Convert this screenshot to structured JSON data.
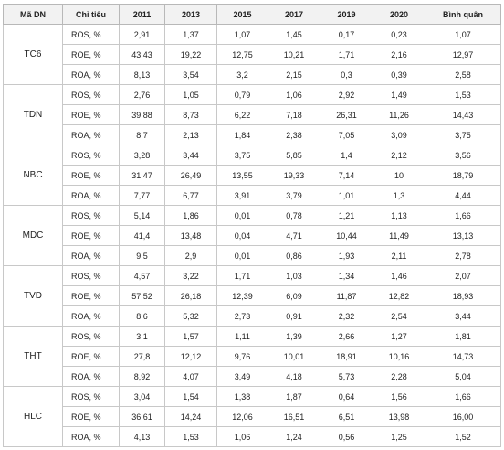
{
  "table": {
    "header": [
      "Mã DN",
      "Chỉ tiêu",
      "2011",
      "2013",
      "2015",
      "2017",
      "2019",
      "2020",
      "Bình quân"
    ],
    "groups": [
      {
        "company": "TC6",
        "rows": [
          [
            "ROS, %",
            "2,91",
            "1,37",
            "1,07",
            "1,45",
            "0,17",
            "0,23",
            "1,07"
          ],
          [
            "ROE, %",
            "43,43",
            "19,22",
            "12,75",
            "10,21",
            "1,71",
            "2,16",
            "12,97"
          ],
          [
            "ROA, %",
            "8,13",
            "3,54",
            "3,2",
            "2,15",
            "0,3",
            "0,39",
            "2,58"
          ]
        ]
      },
      {
        "company": "TDN",
        "rows": [
          [
            "ROS, %",
            "2,76",
            "1,05",
            "0,79",
            "1,06",
            "2,92",
            "1,49",
            "1,53"
          ],
          [
            "ROE, %",
            "39,88",
            "8,73",
            "6,22",
            "7,18",
            "26,31",
            "11,26",
            "14,43"
          ],
          [
            "ROA, %",
            "8,7",
            "2,13",
            "1,84",
            "2,38",
            "7,05",
            "3,09",
            "3,75"
          ]
        ]
      },
      {
        "company": "NBC",
        "rows": [
          [
            "ROS, %",
            "3,28",
            "3,44",
            "3,75",
            "5,85",
            "1,4",
            "2,12",
            "3,56"
          ],
          [
            "ROE, %",
            "31,47",
            "26,49",
            "13,55",
            "19,33",
            "7,14",
            "10",
            "18,79"
          ],
          [
            "ROA, %",
            "7,77",
            "6,77",
            "3,91",
            "3,79",
            "1,01",
            "1,3",
            "4,44"
          ]
        ]
      },
      {
        "company": "MDC",
        "rows": [
          [
            "ROS, %",
            "5,14",
            "1,86",
            "0,01",
            "0,78",
            "1,21",
            "1,13",
            "1,66"
          ],
          [
            "ROE, %",
            "41,4",
            "13,48",
            "0,04",
            "4,71",
            "10,44",
            "11,49",
            "13,13"
          ],
          [
            "ROA, %",
            "9,5",
            "2,9",
            "0,01",
            "0,86",
            "1,93",
            "2,11",
            "2,78"
          ]
        ]
      },
      {
        "company": "TVD",
        "rows": [
          [
            "ROS, %",
            "4,57",
            "3,22",
            "1,71",
            "1,03",
            "1,34",
            "1,46",
            "2,07"
          ],
          [
            "ROE, %",
            "57,52",
            "26,18",
            "12,39",
            "6,09",
            "11,87",
            "12,82",
            "18,93"
          ],
          [
            "ROA, %",
            "8,6",
            "5,32",
            "2,73",
            "0,91",
            "2,32",
            "2,54",
            "3,44"
          ]
        ]
      },
      {
        "company": "THT",
        "rows": [
          [
            "ROS, %",
            "3,1",
            "1,57",
            "1,11",
            "1,39",
            "2,66",
            "1,27",
            "1,81"
          ],
          [
            "ROE, %",
            "27,8",
            "12,12",
            "9,76",
            "10,01",
            "18,91",
            "10,16",
            "14,73"
          ],
          [
            "ROA, %",
            "8,92",
            "4,07",
            "3,49",
            "4,18",
            "5,73",
            "2,28",
            "5,04"
          ]
        ]
      },
      {
        "company": "HLC",
        "rows": [
          [
            "ROS, %",
            "3,04",
            "1,54",
            "1,38",
            "1,87",
            "0,64",
            "1,56",
            "1,66"
          ],
          [
            "ROE, %",
            "36,61",
            "14,24",
            "12,06",
            "16,51",
            "6,51",
            "13,98",
            "16,00"
          ],
          [
            "ROA, %",
            "4,13",
            "1,53",
            "1,06",
            "1,24",
            "0,56",
            "1,25",
            "1,52"
          ]
        ]
      }
    ]
  }
}
